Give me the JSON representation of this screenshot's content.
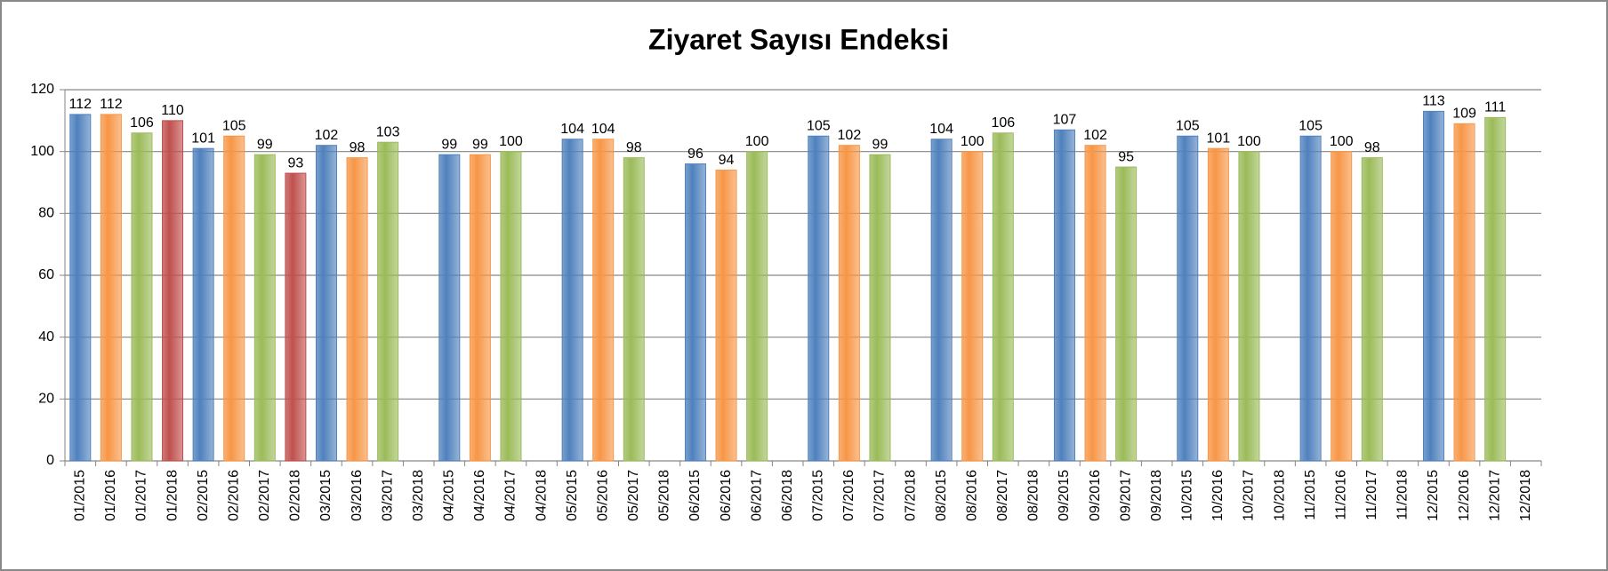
{
  "chart_data": {
    "type": "bar",
    "title": "Ziyaret Sayısı Endeksi",
    "categories": [
      "01/2015",
      "01/2016",
      "01/2017",
      "01/2018",
      "02/2015",
      "02/2016",
      "02/2017",
      "02/2018",
      "03/2015",
      "03/2016",
      "03/2017",
      "03/2018",
      "04/2015",
      "04/2016",
      "04/2017",
      "04/2018",
      "05/2015",
      "05/2016",
      "05/2017",
      "05/2018",
      "06/2015",
      "06/2016",
      "06/2017",
      "06/2018",
      "07/2015",
      "07/2016",
      "07/2017",
      "07/2018",
      "08/2015",
      "08/2016",
      "08/2017",
      "08/2018",
      "09/2015",
      "09/2016",
      "09/2017",
      "09/2018",
      "10/2015",
      "10/2016",
      "10/2017",
      "10/2018",
      "11/2015",
      "11/2016",
      "11/2017",
      "11/2018",
      "12/2015",
      "12/2016",
      "12/2017",
      "12/2018"
    ],
    "values": [
      112,
      112,
      106,
      110,
      101,
      105,
      99,
      93,
      102,
      98,
      103,
      null,
      99,
      99,
      100,
      null,
      104,
      104,
      98,
      null,
      96,
      94,
      100,
      null,
      105,
      102,
      99,
      null,
      104,
      100,
      106,
      null,
      107,
      102,
      95,
      null,
      105,
      101,
      100,
      null,
      105,
      100,
      98,
      null,
      113,
      109,
      111,
      null
    ],
    "colors": [
      "#4f81bd",
      "#f79646",
      "#9bbb59",
      "#c0504d"
    ],
    "ylim": [
      0,
      120
    ],
    "yticks": [
      0,
      20,
      40,
      60,
      80,
      100,
      120
    ],
    "grid": true
  }
}
